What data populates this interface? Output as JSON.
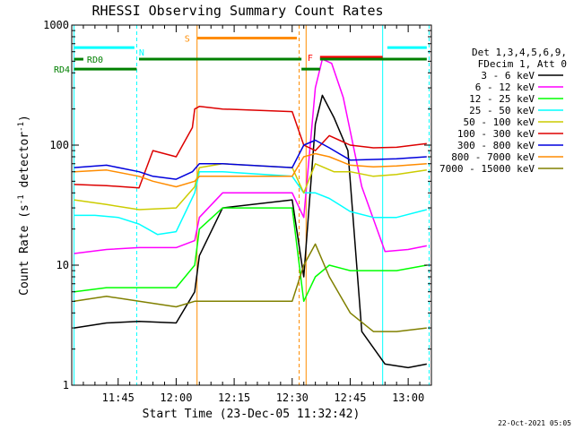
{
  "chart_data": {
    "type": "line",
    "title": "RHESSI Observing Summary Count Rates",
    "xlabel": "Start Time (23-Dec-05 11:32:42)",
    "ylabel": "Count Rate (s",
    "ylabel_sup": "-1",
    "ylabel_tail": " detector",
    "ylabel_end": ")",
    "y_scale": "log",
    "ylim": [
      1,
      1000
    ],
    "xlim_minutes": [
      11.55,
      13.1
    ],
    "y_ticks": [
      {
        "value": 1,
        "label": "1"
      },
      {
        "value": 10,
        "label": "10"
      },
      {
        "value": 100,
        "label": "100"
      },
      {
        "value": 1000,
        "label": "1000"
      }
    ],
    "x_ticks": [
      {
        "value": 11.75,
        "label": "11:45"
      },
      {
        "value": 12.0,
        "label": "12:00"
      },
      {
        "value": 12.25,
        "label": "12:15"
      },
      {
        "value": 12.5,
        "label": "12:30"
      },
      {
        "value": 12.75,
        "label": "12:45"
      },
      {
        "value": 13.0,
        "label": "13:00"
      }
    ],
    "legend_header": [
      "Det 1,3,4,5,6,9,",
      "FDecim 1, Att 0"
    ],
    "series": [
      {
        "name": "3 - 6 keV",
        "color": "#000000",
        "points": [
          [
            11.56,
            3.0
          ],
          [
            11.7,
            3.3
          ],
          [
            11.84,
            3.4
          ],
          [
            12.0,
            3.3
          ],
          [
            12.08,
            6
          ],
          [
            12.1,
            12
          ],
          [
            12.2,
            30
          ],
          [
            12.5,
            35
          ],
          [
            12.55,
            8
          ],
          [
            12.6,
            150
          ],
          [
            12.63,
            260
          ],
          [
            12.68,
            170
          ],
          [
            12.74,
            90
          ],
          [
            12.8,
            2.8
          ],
          [
            12.9,
            1.5
          ],
          [
            13.0,
            1.4
          ],
          [
            13.08,
            1.5
          ]
        ]
      },
      {
        "name": "6 - 12 keV",
        "color": "#ff00ff",
        "points": [
          [
            11.56,
            12.5
          ],
          [
            11.7,
            13.5
          ],
          [
            11.84,
            14
          ],
          [
            12.0,
            14
          ],
          [
            12.08,
            16
          ],
          [
            12.1,
            25
          ],
          [
            12.2,
            40
          ],
          [
            12.5,
            40
          ],
          [
            12.55,
            25
          ],
          [
            12.6,
            300
          ],
          [
            12.63,
            520
          ],
          [
            12.67,
            480
          ],
          [
            12.72,
            250
          ],
          [
            12.8,
            45
          ],
          [
            12.9,
            13
          ],
          [
            13.0,
            13.5
          ],
          [
            13.08,
            14.5
          ]
        ]
      },
      {
        "name": "12 - 25 keV",
        "color": "#00ff00",
        "points": [
          [
            11.56,
            6
          ],
          [
            11.7,
            6.5
          ],
          [
            11.84,
            6.5
          ],
          [
            12.0,
            6.5
          ],
          [
            12.08,
            10
          ],
          [
            12.1,
            20
          ],
          [
            12.2,
            30
          ],
          [
            12.5,
            30
          ],
          [
            12.55,
            5
          ],
          [
            12.6,
            8
          ],
          [
            12.66,
            10
          ],
          [
            12.75,
            9
          ],
          [
            12.85,
            9
          ],
          [
            12.95,
            9
          ],
          [
            13.08,
            10
          ]
        ]
      },
      {
        "name": "25 - 50 keV",
        "color": "#00ffff",
        "points": [
          [
            11.56,
            26
          ],
          [
            11.65,
            26
          ],
          [
            11.75,
            25
          ],
          [
            11.84,
            22
          ],
          [
            11.92,
            18
          ],
          [
            12.0,
            19
          ],
          [
            12.08,
            40
          ],
          [
            12.1,
            60
          ],
          [
            12.2,
            60
          ],
          [
            12.5,
            55
          ],
          [
            12.55,
            40
          ],
          [
            12.6,
            40
          ],
          [
            12.66,
            36
          ],
          [
            12.75,
            28
          ],
          [
            12.85,
            25
          ],
          [
            12.95,
            25
          ],
          [
            13.08,
            29
          ]
        ]
      },
      {
        "name": "50 - 100 keV",
        "color": "#cccc00",
        "points": [
          [
            11.56,
            35
          ],
          [
            11.7,
            32
          ],
          [
            11.84,
            29
          ],
          [
            12.0,
            30
          ],
          [
            12.08,
            45
          ],
          [
            12.1,
            65
          ],
          [
            12.2,
            70
          ],
          [
            12.5,
            65
          ],
          [
            12.55,
            40
          ],
          [
            12.6,
            70
          ],
          [
            12.68,
            60
          ],
          [
            12.75,
            60
          ],
          [
            12.85,
            55
          ],
          [
            12.95,
            57
          ],
          [
            13.08,
            62
          ]
        ]
      },
      {
        "name": "100 - 300 keV",
        "color": "#dd0000",
        "points": [
          [
            11.56,
            47
          ],
          [
            11.7,
            46
          ],
          [
            11.84,
            44
          ],
          [
            11.9,
            90
          ],
          [
            12.0,
            80
          ],
          [
            12.07,
            140
          ],
          [
            12.08,
            200
          ],
          [
            12.1,
            210
          ],
          [
            12.2,
            200
          ],
          [
            12.5,
            190
          ],
          [
            12.55,
            100
          ],
          [
            12.6,
            90
          ],
          [
            12.66,
            120
          ],
          [
            12.75,
            100
          ],
          [
            12.85,
            95
          ],
          [
            12.95,
            96
          ],
          [
            13.08,
            103
          ]
        ]
      },
      {
        "name": "300 - 800 keV",
        "color": "#0000dd",
        "points": [
          [
            11.56,
            65
          ],
          [
            11.7,
            68
          ],
          [
            11.84,
            60
          ],
          [
            11.9,
            55
          ],
          [
            12.0,
            52
          ],
          [
            12.07,
            60
          ],
          [
            12.1,
            70
          ],
          [
            12.2,
            70
          ],
          [
            12.5,
            65
          ],
          [
            12.55,
            100
          ],
          [
            12.6,
            110
          ],
          [
            12.66,
            95
          ],
          [
            12.75,
            75
          ],
          [
            12.85,
            76
          ],
          [
            12.95,
            77
          ],
          [
            13.08,
            80
          ]
        ]
      },
      {
        "name": "800 - 7000 keV",
        "color": "#ff8c00",
        "points": [
          [
            11.56,
            60
          ],
          [
            11.7,
            62
          ],
          [
            11.84,
            55
          ],
          [
            11.9,
            50
          ],
          [
            12.0,
            45
          ],
          [
            12.08,
            50
          ],
          [
            12.1,
            55
          ],
          [
            12.2,
            55
          ],
          [
            12.5,
            55
          ],
          [
            12.55,
            80
          ],
          [
            12.6,
            85
          ],
          [
            12.66,
            80
          ],
          [
            12.75,
            68
          ],
          [
            12.85,
            66
          ],
          [
            12.95,
            67
          ],
          [
            13.08,
            70
          ]
        ]
      },
      {
        "name": "7000 - 15000 keV",
        "color": "#808000",
        "points": [
          [
            11.56,
            5
          ],
          [
            11.7,
            5.5
          ],
          [
            11.84,
            5
          ],
          [
            12.0,
            4.5
          ],
          [
            12.08,
            5
          ],
          [
            12.1,
            5
          ],
          [
            12.2,
            5
          ],
          [
            12.5,
            5
          ],
          [
            12.55,
            10
          ],
          [
            12.6,
            15
          ],
          [
            12.66,
            8
          ],
          [
            12.75,
            4
          ],
          [
            12.85,
            2.8
          ],
          [
            12.95,
            2.8
          ],
          [
            13.08,
            3.0
          ]
        ]
      }
    ],
    "vertical_lines": [
      {
        "x": 11.56,
        "color": "#00ffff",
        "style": "solid"
      },
      {
        "x": 11.83,
        "color": "#00ffff",
        "style": "dashed"
      },
      {
        "x": 12.09,
        "color": "#ff8c00",
        "style": "solid"
      },
      {
        "x": 12.53,
        "color": "#ff8c00",
        "style": "dashed"
      },
      {
        "x": 12.56,
        "color": "#ff8c00",
        "style": "solid"
      },
      {
        "x": 12.89,
        "color": "#00ffff",
        "style": "solid"
      },
      {
        "x": 13.09,
        "color": "#00ffff",
        "style": "dashed"
      }
    ],
    "flag_bars": [
      {
        "label": "N",
        "color": "#00ffff",
        "y": 650,
        "x0": 11.56,
        "x1": 11.82
      },
      {
        "label": "",
        "color": "#00ffff",
        "y": 650,
        "x0": 12.91,
        "x1": 13.08
      },
      {
        "label": "S",
        "color": "#ff8c00",
        "y": 780,
        "x0": 12.09,
        "x1": 12.52
      },
      {
        "label": "F",
        "color": "#ff0000",
        "y": 540,
        "x0": 12.62,
        "x1": 12.89
      },
      {
        "label": "RD0",
        "color": "#008000",
        "y": 520,
        "x0": 11.56,
        "x1": 11.6
      },
      {
        "label": "",
        "color": "#008000",
        "y": 520,
        "x0": 11.84,
        "x1": 12.54
      },
      {
        "label": "",
        "color": "#008000",
        "y": 520,
        "x0": 12.62,
        "x1": 13.08
      },
      {
        "label": "RD4",
        "color": "#008000",
        "y": 430,
        "x0": 11.56,
        "x1": 11.83
      },
      {
        "label": "",
        "color": "#008000",
        "y": 430,
        "x0": 12.54,
        "x1": 12.62
      }
    ]
  },
  "footer_timestamp": "22-Oct-2021 05:05"
}
